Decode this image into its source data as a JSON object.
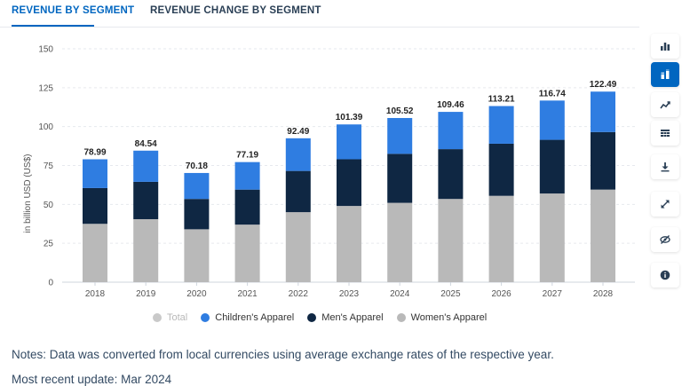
{
  "tabs": [
    {
      "label": "REVENUE BY SEGMENT",
      "active": true
    },
    {
      "label": "REVENUE CHANGE BY SEGMENT",
      "active": false
    }
  ],
  "colors": {
    "accent": "#0066c0",
    "childrens_apparel": "#2f7de1",
    "mens_apparel": "#0f2743",
    "womens_apparel": "#b9b9b9",
    "total_disabled": "#c9c9c9"
  },
  "legend": [
    {
      "label": "Total",
      "color": "#c9c9c9",
      "enabled": false
    },
    {
      "label": "Children's Apparel",
      "color": "#2f7de1",
      "enabled": true
    },
    {
      "label": "Men's Apparel",
      "color": "#0f2743",
      "enabled": true
    },
    {
      "label": "Women's Apparel",
      "color": "#b9b9b9",
      "enabled": true
    }
  ],
  "chart_data": {
    "type": "bar",
    "stacked": true,
    "ylabel": "in billion USD (US$)",
    "ylim": [
      0,
      150
    ],
    "yticks": [
      0,
      25,
      50,
      75,
      100,
      125,
      150
    ],
    "grid": true,
    "categories": [
      "2018",
      "2019",
      "2020",
      "2021",
      "2022",
      "2023",
      "2024",
      "2025",
      "2026",
      "2027",
      "2028"
    ],
    "series": [
      {
        "name": "Women's Apparel",
        "color": "#b9b9b9",
        "values": [
          37.5,
          40.5,
          34,
          37,
          45,
          49,
          51,
          53.5,
          55.5,
          57,
          59.5
        ]
      },
      {
        "name": "Men's Apparel",
        "color": "#0f2743",
        "values": [
          23,
          24,
          19.5,
          22.5,
          26.5,
          30,
          31.5,
          32,
          33.5,
          34.5,
          37
        ]
      },
      {
        "name": "Children's Apparel",
        "color": "#2f7de1",
        "values": [
          18.49,
          20.04,
          16.68,
          17.69,
          20.99,
          22.39,
          23.02,
          23.96,
          24.21,
          25.24,
          25.99
        ]
      }
    ],
    "totals": [
      "78.99",
      "84.54",
      "70.18",
      "77.19",
      "92.49",
      "101.39",
      "105.52",
      "109.46",
      "113.21",
      "116.74",
      "122.49"
    ]
  },
  "toolbar": [
    {
      "icon": "bar-chart-icon",
      "active": false
    },
    {
      "icon": "stacked-bar-icon",
      "active": true
    },
    {
      "icon": "line-chart-icon",
      "active": false
    },
    {
      "icon": "table-icon",
      "active": false
    },
    {
      "icon": "download-icon",
      "active": false
    },
    {
      "icon": "fullscreen-icon",
      "active": false
    },
    {
      "icon": "hide-icon",
      "active": false
    },
    {
      "icon": "info-icon",
      "active": false
    }
  ],
  "notes": "Notes: Data was converted from local currencies using average exchange rates of the respective year.",
  "most_recent_update": "Most recent update: Mar 2024"
}
